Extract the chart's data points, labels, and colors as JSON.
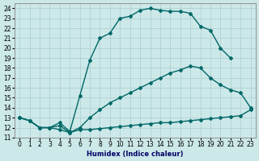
{
  "xlabel": "Humidex (Indice chaleur)",
  "bg_color": "#cce8e8",
  "grid_color": "#aacece",
  "line_color": "#006868",
  "xlim": [
    -0.5,
    23.5
  ],
  "ylim": [
    11,
    24.5
  ],
  "yticks": [
    11,
    12,
    13,
    14,
    15,
    16,
    17,
    18,
    19,
    20,
    21,
    22,
    23,
    24
  ],
  "xticks": [
    0,
    1,
    2,
    3,
    4,
    5,
    6,
    7,
    8,
    9,
    10,
    11,
    12,
    13,
    14,
    15,
    16,
    17,
    18,
    19,
    20,
    21,
    22,
    23
  ],
  "line1_upper": {
    "x": [
      0,
      1,
      2,
      3,
      4,
      5,
      6,
      7,
      8,
      9,
      10,
      11,
      12,
      13,
      14,
      15,
      16,
      17,
      18,
      19,
      20,
      21
    ],
    "y": [
      13.0,
      12.7,
      12.0,
      12.0,
      12.5,
      11.6,
      15.2,
      18.8,
      21.0,
      21.5,
      23.0,
      23.2,
      23.8,
      24.0,
      23.8,
      23.7,
      23.7,
      23.5,
      22.2,
      21.8,
      20.0,
      19.0
    ]
  },
  "line2_mid": {
    "x": [
      0,
      1,
      2,
      3,
      4,
      5,
      6,
      7,
      8,
      9,
      10,
      11,
      12,
      13,
      14,
      15,
      16,
      17,
      18,
      19,
      20,
      21,
      22,
      23
    ],
    "y": [
      13.0,
      12.7,
      12.0,
      12.0,
      12.2,
      11.5,
      12.0,
      13.0,
      13.8,
      14.5,
      15.0,
      15.5,
      16.0,
      16.5,
      17.0,
      17.5,
      17.8,
      18.2,
      18.0,
      17.0,
      16.3,
      15.8,
      15.5,
      14.0
    ]
  },
  "line3_lower": {
    "x": [
      0,
      1,
      2,
      3,
      4,
      5,
      6,
      7,
      8,
      9,
      10,
      11,
      12,
      13,
      14,
      15,
      16,
      17,
      18,
      19,
      20,
      21,
      22,
      23
    ],
    "y": [
      13.0,
      12.7,
      12.0,
      12.0,
      11.8,
      11.5,
      11.8,
      11.8,
      11.9,
      12.0,
      12.1,
      12.2,
      12.3,
      12.4,
      12.5,
      12.5,
      12.6,
      12.7,
      12.8,
      12.9,
      13.0,
      13.1,
      13.2,
      13.8
    ]
  },
  "marker": "D",
  "markersize": 2,
  "linewidth": 1.0,
  "tick_fontsize": 5.5,
  "xlabel_fontsize": 6,
  "figsize": [
    3.2,
    2.0
  ],
  "dpi": 100
}
